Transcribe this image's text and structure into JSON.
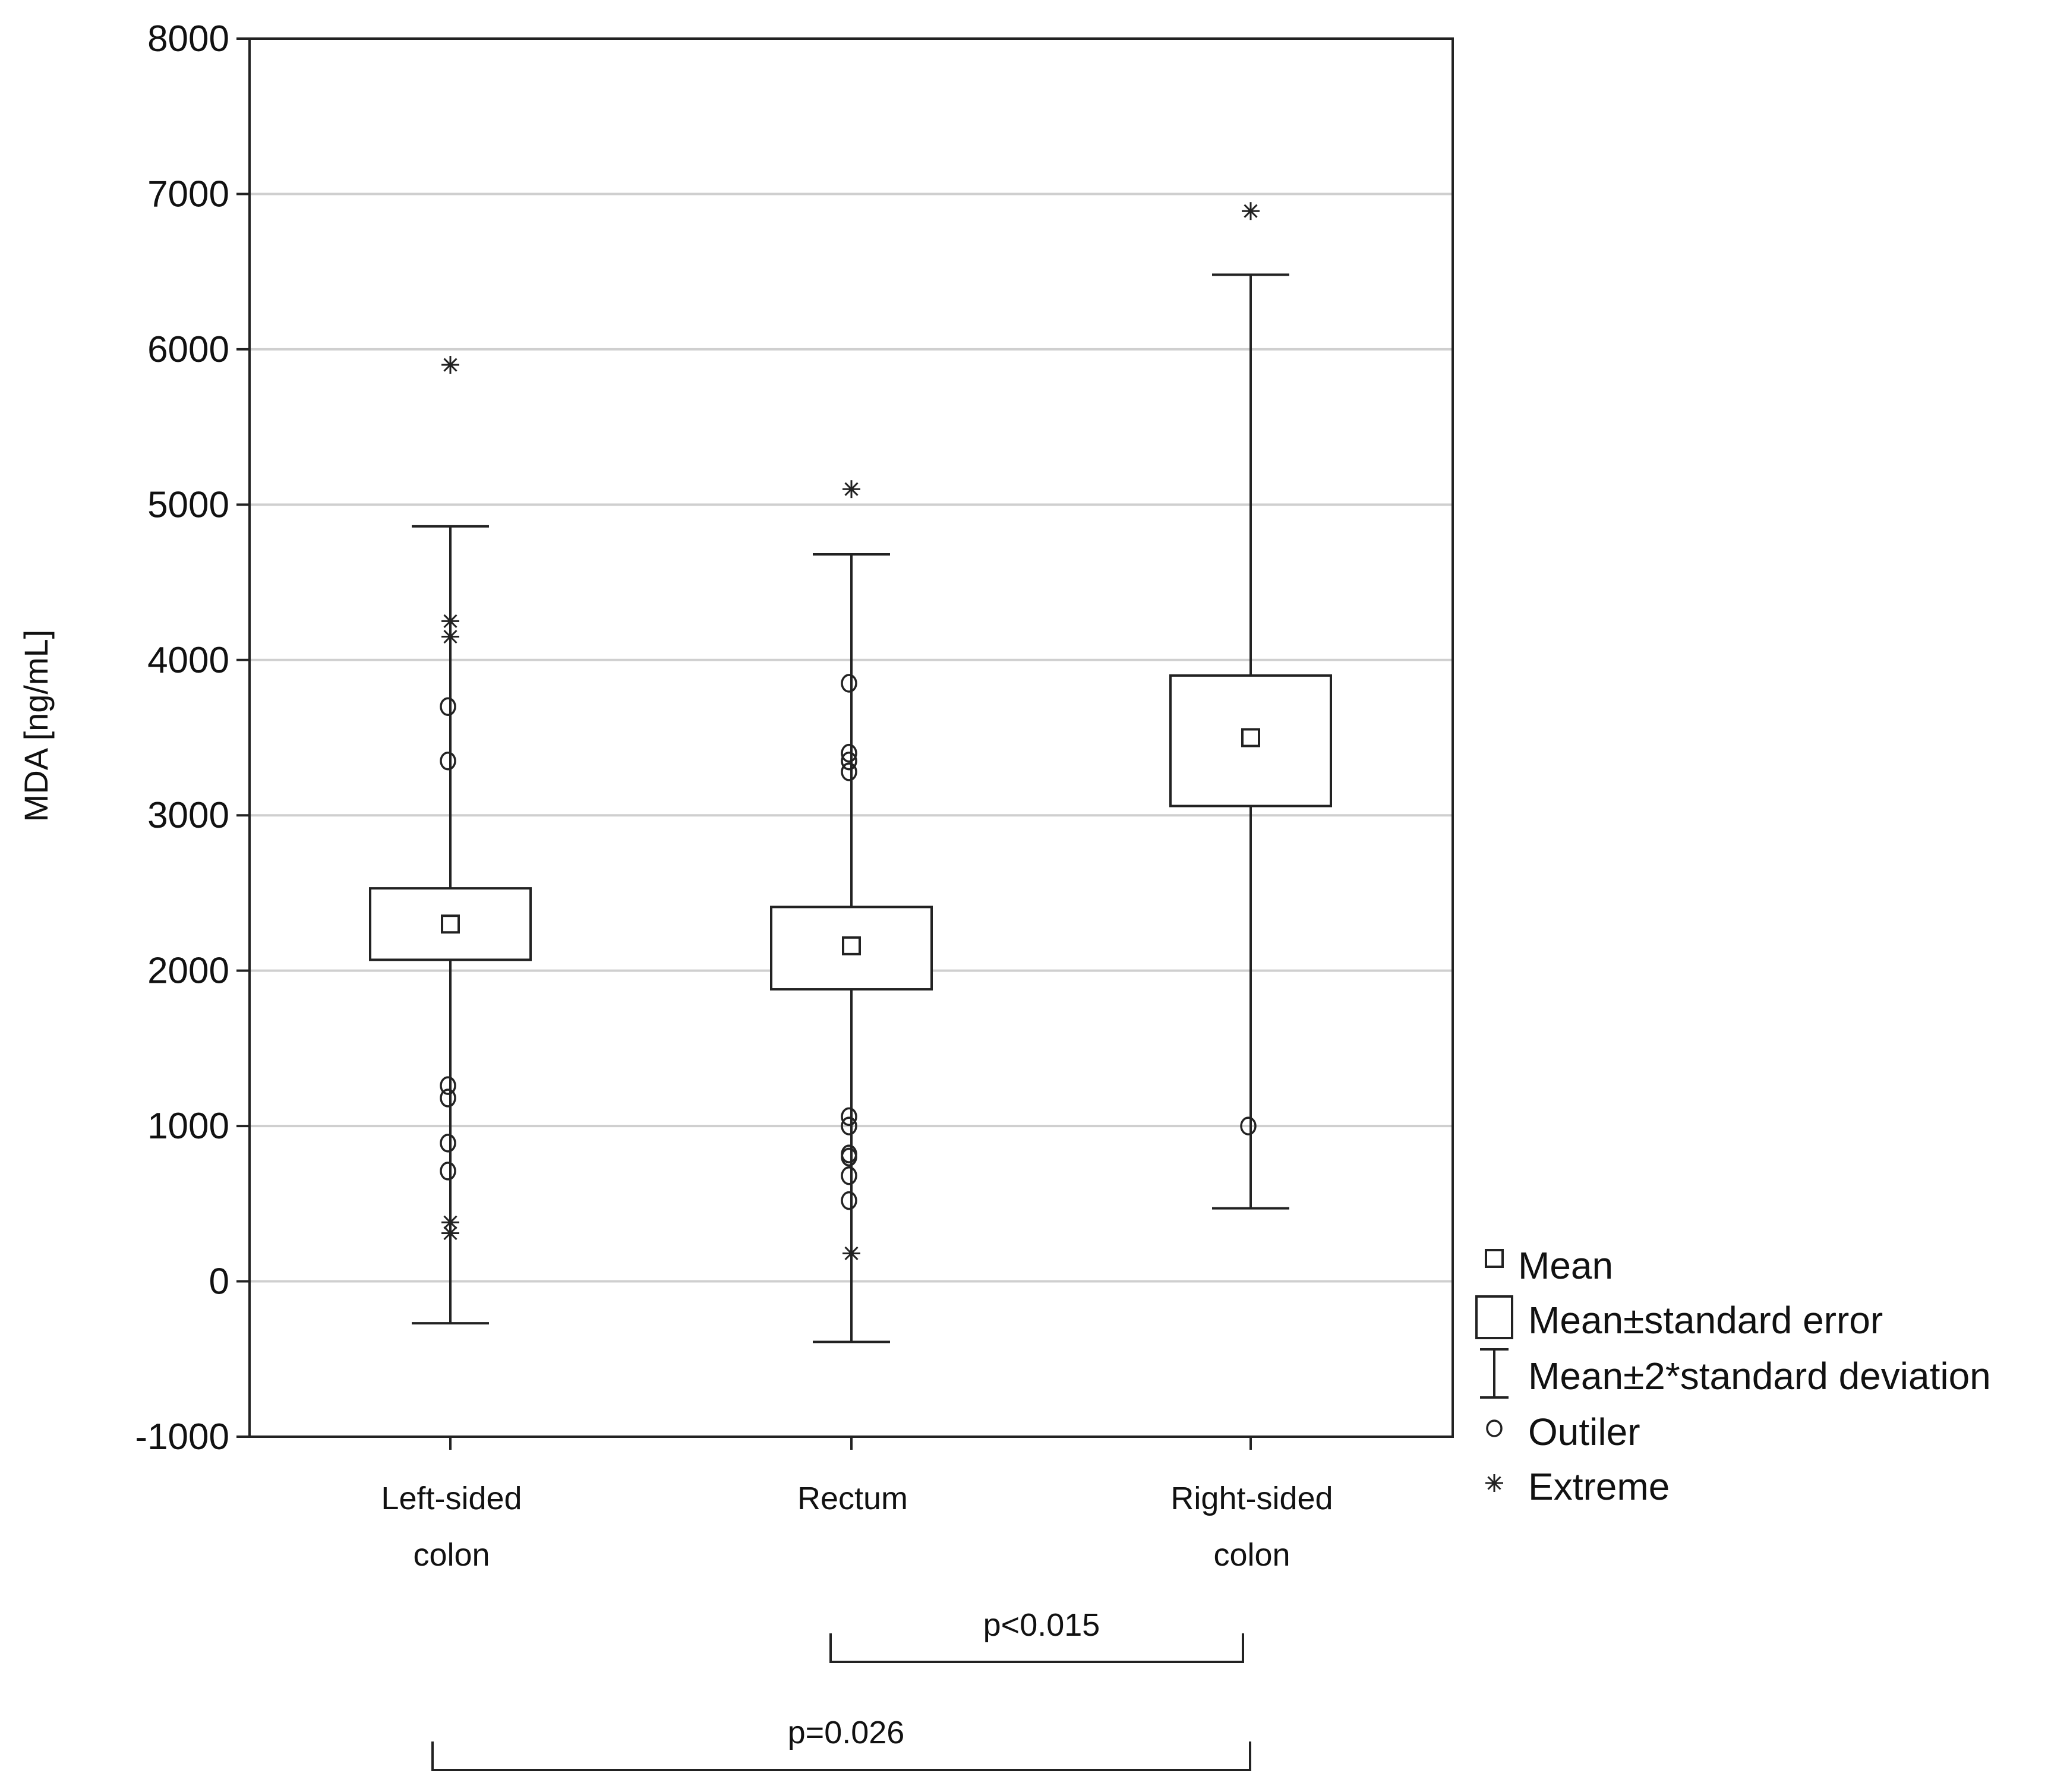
{
  "chart_data": {
    "type": "box",
    "ylabel": "MDA [ng/mL]",
    "ylim": [
      -1000,
      8000
    ],
    "yticks": [
      -1000,
      0,
      1000,
      2000,
      3000,
      4000,
      5000,
      6000,
      7000,
      8000
    ],
    "grid": true,
    "legend_position": "bottom-right outside",
    "categories": [
      {
        "lines": [
          "Left-sided",
          "colon"
        ]
      },
      {
        "lines": [
          "Rectum"
        ]
      },
      {
        "lines": [
          "Right-sided",
          "colon"
        ]
      }
    ],
    "series": [
      {
        "mean": 2300,
        "se_low": 2070,
        "se_high": 2530,
        "sd2_low": -270,
        "sd2_high": 4860,
        "outliers": [
          3700,
          3350,
          1260,
          1180,
          890,
          710
        ],
        "extremes": [
          5900,
          4250,
          4150,
          380,
          310
        ]
      },
      {
        "mean": 2160,
        "se_low": 1880,
        "se_high": 2410,
        "sd2_low": -390,
        "sd2_high": 4680,
        "outliers": [
          3850,
          3400,
          3350,
          3280,
          1060,
          1000,
          820,
          800,
          680,
          520
        ],
        "extremes": [
          5100,
          180
        ]
      },
      {
        "mean": 3500,
        "se_low": 3060,
        "se_high": 3900,
        "sd2_low": 470,
        "sd2_high": 6480,
        "outliers": [
          1000
        ],
        "extremes": [
          6890
        ]
      }
    ],
    "legend": [
      {
        "symbol": "mean",
        "label": "Mean"
      },
      {
        "symbol": "se",
        "label": "Mean±standard error"
      },
      {
        "symbol": "sd",
        "label": "Mean±2*standard deviation"
      },
      {
        "symbol": "outlier",
        "label": "Outiler"
      },
      {
        "symbol": "extreme",
        "label": "Extreme"
      }
    ],
    "comparisons": [
      {
        "from": 1,
        "to": 2,
        "label": "p<0.015"
      },
      {
        "from": 0,
        "to": 2,
        "label": "p=0.026"
      }
    ]
  }
}
